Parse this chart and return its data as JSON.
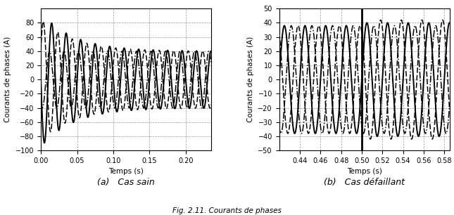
{
  "subplot_a": {
    "caption": "(a)   Cas sain",
    "xlabel": "Temps (s)",
    "ylabel": "Courants de phases (A)",
    "xlim": [
      0,
      0.235
    ],
    "ylim": [
      -100,
      100
    ],
    "yticks": [
      -100,
      -80,
      -60,
      -40,
      -20,
      0,
      20,
      40,
      60,
      80
    ],
    "xticks": [
      0,
      0.05,
      0.1,
      0.15,
      0.2
    ],
    "freq": 50,
    "amp_steady": 40,
    "amp_transient_a": 95,
    "amp_transient_b": 85,
    "tau": 22
  },
  "subplot_b": {
    "caption": "(b)   Cas défaillant",
    "xlabel": "Temps (s)",
    "ylabel": "Courants de phases (A)",
    "xlim": [
      0.42,
      0.585
    ],
    "ylim": [
      -50,
      50
    ],
    "yticks": [
      -50,
      -40,
      -30,
      -20,
      -10,
      0,
      10,
      20,
      30,
      40,
      50
    ],
    "xticks": [
      0.44,
      0.46,
      0.48,
      0.5,
      0.52,
      0.54,
      0.56,
      0.58
    ],
    "fault_time": 0.5,
    "amp_before": 38,
    "amp_after_a": 40,
    "amp_after_b": 42,
    "freq": 50
  },
  "line_solid": {
    "linestyle": "-",
    "linewidth": 1.4,
    "color": "black"
  },
  "line_dash": {
    "linestyle": "--",
    "linewidth": 1.1,
    "color": "black",
    "dashes": [
      5,
      2
    ]
  },
  "line_dashdot": {
    "linestyle": "-.",
    "linewidth": 1.1,
    "color": "black"
  },
  "background_color": "#ffffff",
  "grid_color": "#999999",
  "grid_linestyle": "--",
  "caption_fontsize": 9,
  "tick_fontsize": 7,
  "label_fontsize": 7.5
}
